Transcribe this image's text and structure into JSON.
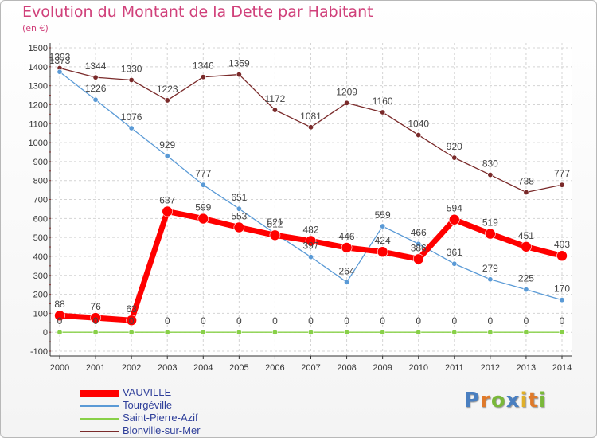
{
  "title": "Evolution du Montant de la Dette par Habitant",
  "unit_label": "(en €)",
  "brand": {
    "text": "Proxiti",
    "letters": [
      {
        "ch": "P",
        "color": "#4a7fc0"
      },
      {
        "ch": "r",
        "color": "#e07a2a"
      },
      {
        "ch": "o",
        "color": "#7ab83a"
      },
      {
        "ch": "x",
        "color": "#4a7fc0"
      },
      {
        "ch": "i",
        "color": "#e0b02a"
      },
      {
        "ch": "t",
        "color": "#e07a2a"
      },
      {
        "ch": "i",
        "color": "#7ab83a"
      }
    ]
  },
  "chart_data": {
    "type": "line",
    "x": [
      "2000",
      "2001",
      "2002",
      "2003",
      "2004",
      "2005",
      "2006",
      "2007",
      "2008",
      "2009",
      "2010",
      "2011",
      "2012",
      "2013",
      "2014"
    ],
    "ylim": [
      -100,
      1500
    ],
    "yticks": [
      -100,
      0,
      100,
      200,
      300,
      400,
      500,
      600,
      700,
      800,
      900,
      1000,
      1100,
      1200,
      1300,
      1400,
      1500
    ],
    "grid": true,
    "legend_position": "bottom-left",
    "series": [
      {
        "name": "VAUVILLE",
        "color": "#ff0000",
        "values": [
          88,
          76,
          63,
          637,
          599,
          553,
          512,
          482,
          446,
          424,
          386,
          594,
          519,
          451,
          403
        ],
        "labels": [
          "88",
          "76",
          "63",
          "637",
          "599",
          "553",
          "512",
          "482",
          "446",
          "424",
          "386",
          "594",
          "519",
          "451",
          "403"
        ]
      },
      {
        "name": "Tourgéville",
        "color": "#5a9ad6",
        "values": [
          1373,
          1226,
          1076,
          929,
          777,
          651,
          521,
          397,
          264,
          559,
          466,
          361,
          279,
          225,
          170
        ],
        "labels": [
          "1373",
          "1226",
          "1076",
          "929",
          "777",
          "651",
          "521",
          "397",
          "264",
          "559",
          "466",
          "361",
          "279",
          "225",
          "170"
        ]
      },
      {
        "name": "Saint-Pierre-Azif",
        "color": "#88d048",
        "values": [
          0,
          0,
          0,
          0,
          0,
          0,
          0,
          0,
          0,
          0,
          0,
          0,
          0,
          0,
          0
        ],
        "labels": [
          "0",
          "0",
          "0",
          "0",
          "0",
          "0",
          "0",
          "0",
          "0",
          "0",
          "0",
          "0",
          "0",
          "0",
          "0"
        ]
      },
      {
        "name": "Blonville-sur-Mer",
        "color": "#7a2a2a",
        "values": [
          1393,
          1344,
          1330,
          1223,
          1346,
          1359,
          1172,
          1081,
          1209,
          1160,
          1040,
          920,
          830,
          738,
          777
        ],
        "labels": [
          "1393",
          "1344",
          "1330",
          "1223",
          "1346",
          "1359",
          "1172",
          "1081",
          "1209",
          "1160",
          "1040",
          "920",
          "830",
          "738",
          "777"
        ]
      }
    ]
  }
}
